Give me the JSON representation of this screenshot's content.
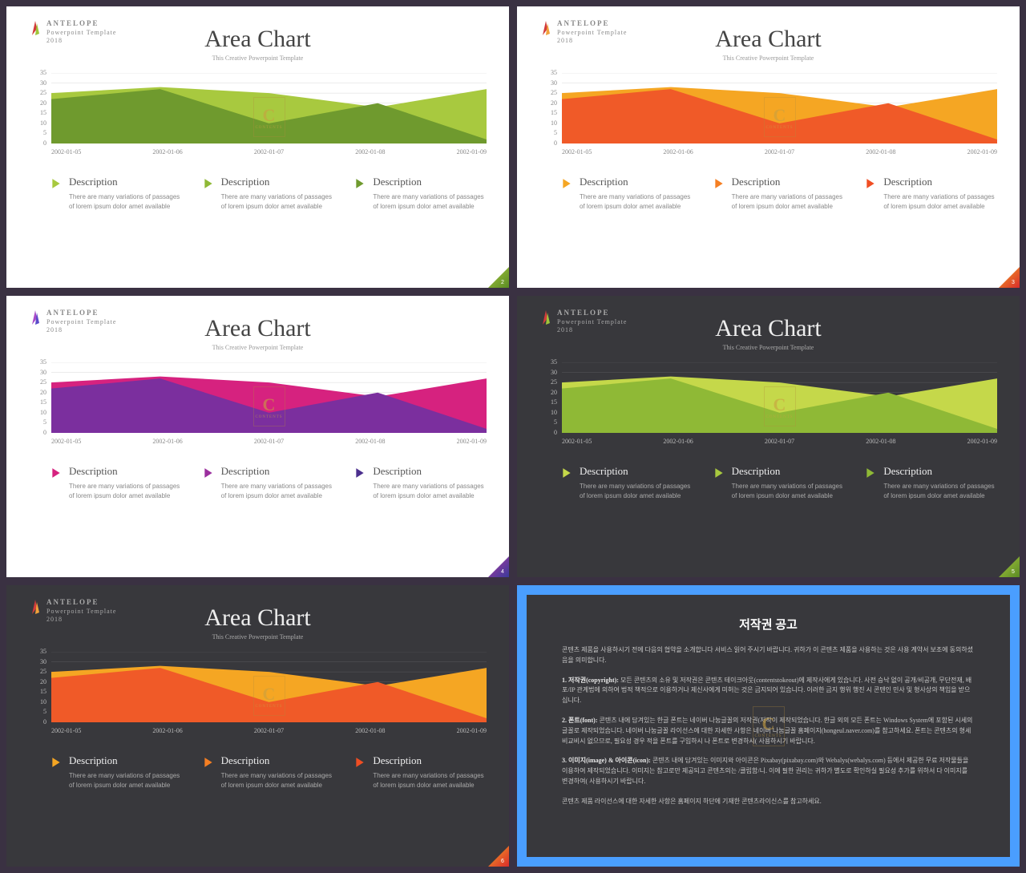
{
  "brand": "ANTELOPE",
  "brand_sub1": "Powerpoint Template",
  "brand_sub2": "2018",
  "slide_title": "Area Chart",
  "slide_subtitle": "This Creative Powerpoint Template",
  "desc_title": "Description",
  "desc_body": "There are many variations of passages of lorem ipsum dolor amet available",
  "watermark_big": "C",
  "watermark_small": "CONTENTS",
  "chart": {
    "type": "area",
    "ylim": [
      0,
      35
    ],
    "yticks": [
      0,
      5,
      10,
      15,
      20,
      25,
      30,
      35
    ],
    "xlabels": [
      "2002-01-05",
      "2002-01-06",
      "2002-01-07",
      "2002-01-08",
      "2002-01-09"
    ],
    "series1": [
      25,
      28,
      25,
      18,
      27
    ],
    "series2": [
      22,
      27,
      10,
      20,
      2
    ]
  },
  "slides": [
    {
      "bg": "light",
      "logo_colors": [
        "#d23b3b",
        "#9fc63a"
      ],
      "area1_fill": "#a8c93f",
      "area2_fill": "#6f9a2e",
      "play_fills": [
        "#a8c93f",
        "#8fb936",
        "#6f9a2e"
      ],
      "badge_fill_a": "#a8c93f",
      "badge_fill_b": "#5a8a24",
      "page": "2"
    },
    {
      "bg": "light",
      "logo_colors": [
        "#d23b3b",
        "#f2a23a"
      ],
      "area1_fill": "#f5a623",
      "area2_fill": "#f05a28",
      "play_fills": [
        "#f5a623",
        "#f57f23",
        "#f04e23"
      ],
      "badge_fill_a": "#f5a623",
      "badge_fill_b": "#d92b2b",
      "page": "3"
    },
    {
      "bg": "light",
      "logo_colors": [
        "#a94bc9",
        "#5a4bc9"
      ],
      "area1_fill": "#d6227f",
      "area2_fill": "#7b2f9e",
      "play_fills": [
        "#d6227f",
        "#9b2f9e",
        "#4b2f8e"
      ],
      "badge_fill_a": "#b03aa0",
      "badge_fill_b": "#3a3a9a",
      "page": "4"
    },
    {
      "bg": "dark",
      "logo_colors": [
        "#d23b3b",
        "#9fc63a"
      ],
      "area1_fill": "#c5d84a",
      "area2_fill": "#8fb936",
      "play_fills": [
        "#c5d84a",
        "#a8c93f",
        "#8fb936"
      ],
      "badge_fill_a": "#a8c93f",
      "badge_fill_b": "#5a8a24",
      "page": "5"
    },
    {
      "bg": "dark",
      "logo_colors": [
        "#d23b3b",
        "#f2a23a"
      ],
      "area1_fill": "#f5a623",
      "area2_fill": "#f05a28",
      "play_fills": [
        "#f5a623",
        "#f57f23",
        "#f04e23"
      ],
      "badge_fill_a": "#f5a623",
      "badge_fill_b": "#d92b2b",
      "page": "6"
    }
  ],
  "copyright": {
    "title": "저작권 공고",
    "p1": "콘텐츠 제품을 사용하시기 전에 다음의 협약을 소개합니다 서비스 읽어 주시기 바랍니다. 귀하가 이 콘텐츠 제품을 사용하는 것은 사용 계약서 보조에 동의하셨음을 의미합니다.",
    "p2_label": "1. 저작권(copyright):",
    "p2": "모든 콘텐츠의 소유 및 저작권은 콘텐츠 테이크아웃(contentstokeout)에 제작사에게 있습니다. 사전 승낙 없이 공개/비공개, 무단전재, 배포/IP 관계법에 의하여 법적 책적으로 이용하거나 제신사에게 미허는 것은 금지되어 있습니다. 이러한 금지 행위 행진 시 콘텐인 민사 및 형사상의 책임을 받으십니다.",
    "p3_label": "2. 폰트(font):",
    "p3": "콘텐츠 내에 담겨있는 한글 폰트는 네이버 나눔글꼴의 저작권(저작이 제작되었습니다. 한글 외의 모든 폰트는 Windows System에 포함된 시세의 글꼴로 제작되었습니다. 네이버 나눔글꼴 라이선스에 대한 자세한 사항은 네이버 나눔글꼴 홈페이지(hongeul.naver.com)를 참고하세요. 폰트는 콘텐츠의 형세 비교비시 없으므로, 필요성 경우 적을 폰트를 구입하시 나 폰트로 변경하시( 사용하시기 바랍니다.",
    "p4_label": "3. 이미지(image) & 아이콘(icon):",
    "p4": "콘텐츠 내에 담겨있는 이미지와 아이콘은 Pixabay(pixabay.com)와 Webalys(webalys.com) 등에서 제공한 무료 저작물들을 이용하여 제작되었습니다. 이미지는 참고로만 제공되고 콘텐츠의는 /클립함/니. 이에 필한 권리는 귀하가 별도로 확인하실 필요성 추가를 위하서 다 이미지를 변경하여( 사용하시기  바랍니다.",
    "p5": "콘텐츠 제품 라이선스에 대한 자세한 사항은 홈페이지 하단에 기재한 콘텐츠라이신스를 참고하세요."
  }
}
